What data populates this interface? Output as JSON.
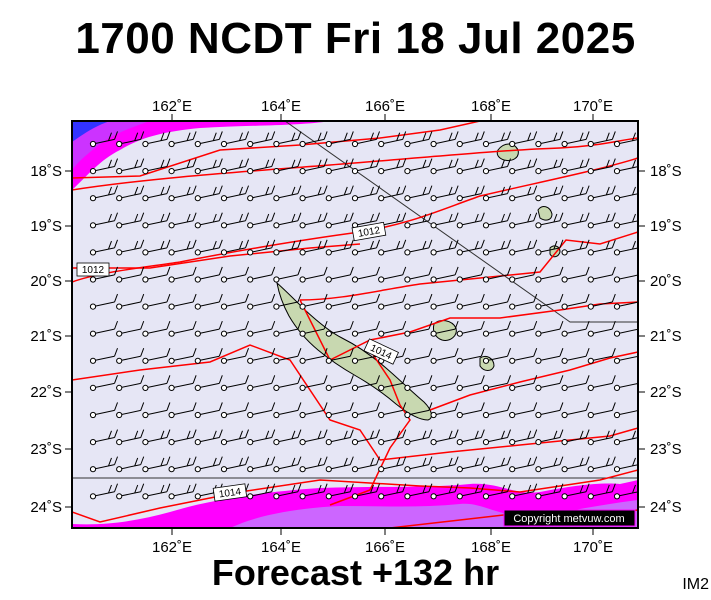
{
  "header": {
    "title": "1700 NCDT Fri 18 Jul 2025"
  },
  "footer": {
    "forecast": "Forecast +132 hr",
    "image_code": "IM2"
  },
  "map": {
    "region": "New Caledonia",
    "background_color": "#e6e6f5",
    "lon_ticks": [
      "162˚E",
      "164˚E",
      "166˚E",
      "168˚E",
      "170˚E"
    ],
    "lat_ticks": [
      "18˚S",
      "19˚S",
      "20˚S",
      "21˚S",
      "22˚S",
      "23˚S",
      "24˚S"
    ],
    "isobar_labels": [
      "1012",
      "1012",
      "1014",
      "1014"
    ],
    "copyright": "Copyright metvuw.com",
    "colors": {
      "isobar": "#ff0000",
      "land": "#c8d8b0",
      "high_wind": "#ff00ff",
      "very_high_wind": "#3333ff"
    }
  }
}
